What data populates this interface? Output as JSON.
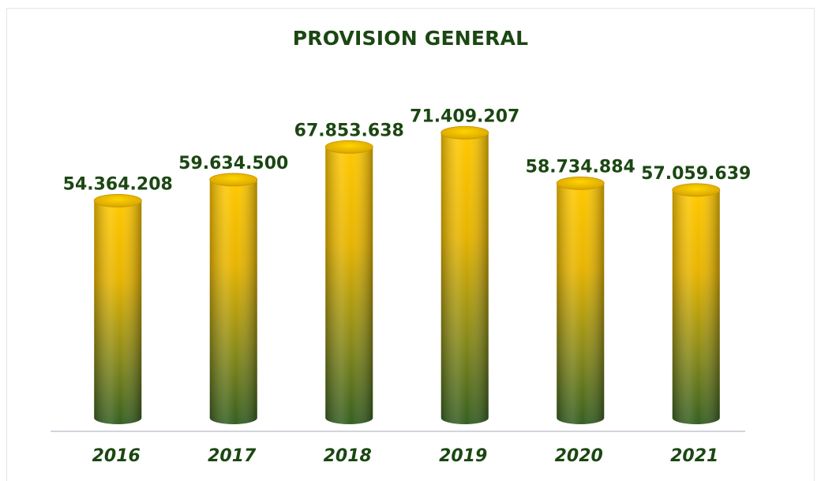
{
  "chart_data": {
    "type": "bar",
    "title": "PROVISION GENERAL",
    "categories": [
      "2016",
      "2017",
      "2018",
      "2019",
      "2020",
      "2021"
    ],
    "values": [
      54364208,
      59634500,
      67853638,
      71409207,
      58734884,
      57059639
    ],
    "value_labels": [
      "54.364.208",
      "59.634.500",
      "67.853.638",
      "71.409.207",
      "58.734.884",
      "57.059.639"
    ],
    "xlabel": "",
    "ylabel": "",
    "grid": false,
    "legend": "none",
    "colors": {
      "top": "#ffcc00",
      "bottom": "#3b6b22",
      "cap": "#e8b400",
      "text": "#1b4712",
      "axis": "#d0d0d8"
    }
  }
}
